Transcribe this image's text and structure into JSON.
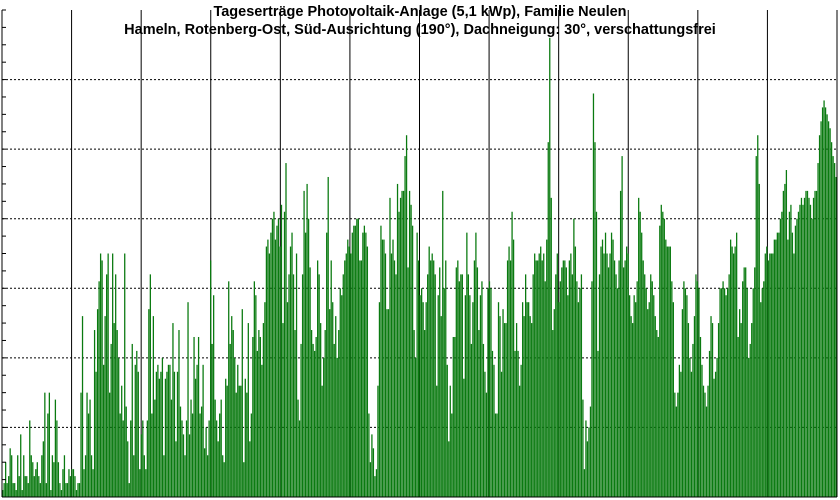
{
  "chart_data": {
    "type": "bar",
    "title": "Tageserträge Photovoltaik-Anlage (5,1 kWp),  Familie Neulen",
    "subtitle": "Hameln, Rotenberg-Ost, Süd-Ausrichtung (190°), Dachneigung: 30°, verschattungsfrei",
    "xlabel": "",
    "ylabel": "",
    "ylim": [
      0,
      7
    ],
    "grid": true,
    "series": [
      {
        "type": "bar",
        "values": [
          0.1,
          0.2,
          0.5,
          0.2,
          0.3,
          0.7,
          0.6,
          0.2,
          0.2,
          0.1,
          0.6,
          0.3,
          0.9,
          0.1,
          0.6,
          0.3,
          0.3,
          0.2,
          1.1,
          0.6,
          0.5,
          0.3,
          0.4,
          0.5,
          0.3,
          0.2,
          0.6,
          0.8,
          1.5,
          0.2,
          1.2,
          1.5,
          0.1,
          0.6,
          0.5,
          1.4,
          1.1,
          0.5,
          0.2,
          0.1,
          0.4,
          0.6,
          0.2,
          0.2,
          0.4,
          0.3,
          0.4,
          0.4,
          0.3,
          0.1,
          0.2,
          0.2,
          1.5,
          2.6,
          0.4,
          0.6,
          1.5,
          1.2,
          1.4,
          0.6,
          0.4,
          2.4,
          1.8,
          2.7,
          3.1,
          3.5,
          3.4,
          1.9,
          2.6,
          3.2,
          3.5,
          1.5,
          2.2,
          3.5,
          2.5,
          3.2,
          2.4,
          2.0,
          1.2,
          1.6,
          1.1,
          3.5,
          1.3,
          0.8,
          0.2,
          1.1,
          2.2,
          0.6,
          1.9,
          2.1,
          1.8,
          0.4,
          0.9,
          1.1,
          0.6,
          0.4,
          1.1,
          2.7,
          3.2,
          1.2,
          2.6,
          1.4,
          1.8,
          1.9,
          1.7,
          1.8,
          2.0,
          0.6,
          1.7,
          1.8,
          1.9,
          1.9,
          1.4,
          2.5,
          1.8,
          0.8,
          1.8,
          2.4,
          1.3,
          1.1,
          0.9,
          0.6,
          1.1,
          2.8,
          0.9,
          1.4,
          1.2,
          2.3,
          1.7,
          1.9,
          2.3,
          1.2,
          1.3,
          1.9,
          0.7,
          1.0,
          0.6,
          1.1,
          3.4,
          2.2,
          2.9,
          1.4,
          1.1,
          0.8,
          1.2,
          1.4,
          0.6,
          0.5,
          1.7,
          1.6,
          3.1,
          2.2,
          2.6,
          2.4,
          2.0,
          1.5,
          1.9,
          1.6,
          1.6,
          2.7,
          0.5,
          1.7,
          1.5,
          2.5,
          0.8,
          1.2,
          2.3,
          3.1,
          2.9,
          2.1,
          2.4,
          2.3,
          1.9,
          2.5,
          2.8,
          3.6,
          3.7,
          3.5,
          3.8,
          4.0,
          4.1,
          3.7,
          3.9,
          4.0,
          3.6,
          4.2,
          2.5,
          4.1,
          4.8,
          2.8,
          3.2,
          3.6,
          3.8,
          3.2,
          2.4,
          3.5,
          1.4,
          1.1,
          2.2,
          3.2,
          4.4,
          3.8,
          4.5,
          4.0,
          3.3,
          2.4,
          2.2,
          2.1,
          2.3,
          3.4,
          3.2,
          2.5,
          1.6,
          2.0,
          2.4,
          3.8,
          4.6,
          2.7,
          3.4,
          2.8,
          2.2,
          2.6,
          2.0,
          2.4,
          3.0,
          2.9,
          3.2,
          3.4,
          3.5,
          3.7,
          3.6,
          3.5,
          3.8,
          3.9,
          3.9,
          4.0,
          4.0,
          3.4,
          3.4,
          3.8,
          3.9,
          3.8,
          3.6,
          1.2,
          0.5,
          0.9,
          0.7,
          0.3,
          0.4,
          1.6,
          2.8,
          3.9,
          3.7,
          3.7,
          3.5,
          2.7,
          2.7,
          4.3,
          3.5,
          3.7,
          3.4,
          3.2,
          4.5,
          4.1,
          4.3,
          4.4,
          4.4,
          4.9,
          5.2,
          3.3,
          4.4,
          4.2,
          3.9,
          2.4,
          2.0,
          3.8,
          3.4,
          2.9,
          3.0,
          2.8,
          2.4,
          2.8,
          3.2,
          3.6,
          3.4,
          3.5,
          3.4,
          3.2,
          1.6,
          2.9,
          3.3,
          2.6,
          4.4,
          3.0,
          3.4,
          1.9,
          0.8,
          1.6,
          1.2,
          2.3,
          2.3,
          3.3,
          3.4,
          3.1,
          3.2,
          3.2,
          1.7,
          2.9,
          3.8,
          3.2,
          2.9,
          2.2,
          2.8,
          3.4,
          3.8,
          3.3,
          2.4,
          2.9,
          3.1,
          2.2,
          1.8,
          1.5,
          3.0,
          3.1,
          3.0,
          2.1,
          1.9,
          1.2,
          1.2,
          2.8,
          2.6,
          1.8,
          2.7,
          2.5,
          2.5,
          3.4,
          3.6,
          3.4,
          4.1,
          3.7,
          2.1,
          2.5,
          2.1,
          1.6,
          1.9,
          2.8,
          2.6,
          3.2,
          2.8,
          2.8,
          2.6,
          2.5,
          3.2,
          3.5,
          3.4,
          3.4,
          3.5,
          3.6,
          3.4,
          3.5,
          3.1,
          3.7,
          5.1,
          6.6,
          4.3,
          2.4,
          2.7,
          3.2,
          3.5,
          2.8,
          3.1,
          3.3,
          3.4,
          3.4,
          3.3,
          2.9,
          3.4,
          3.5,
          3.2,
          4.0,
          3.6,
          3.1,
          2.8,
          3.0,
          3.2,
          1.4,
          0.4,
          1.1,
          0.8,
          1.0,
          1.3,
          3.1,
          5.8,
          5.1,
          4.1,
          2.1,
          3.2,
          3.6,
          3.7,
          3.5,
          3.8,
          3.5,
          3.3,
          3.5,
          3.8,
          3.7,
          3.4,
          3.2,
          3.0,
          3.4,
          4.4,
          4.9,
          3.3,
          3.4,
          3.6,
          3.5,
          2.9,
          2.6,
          2.5,
          2.9,
          2.8,
          3.1,
          4.3,
          4.1,
          3.8,
          3.4,
          3.2,
          3.0,
          2.7,
          2.8,
          3.2,
          3.1,
          2.9,
          2.6,
          2.4,
          2.3,
          3.9,
          4.2,
          4.1,
          4.0,
          3.7,
          3.6,
          3.6,
          3.6,
          3.1,
          2.8,
          1.5,
          1.3,
          1.5,
          1.9,
          1.8,
          2.7,
          3.1,
          3.0,
          2.9,
          2.5,
          2.0,
          1.8,
          2.2,
          2.6,
          3.2,
          3.1,
          3.0,
          2.3,
          1.9,
          1.6,
          1.5,
          1.3,
          1.6,
          2.1,
          2.6,
          2.5,
          1.7,
          1.8,
          2.0,
          2.5,
          3.0,
          3.0,
          3.1,
          3.0,
          2.9,
          3.0,
          3.2,
          3.7,
          3.6,
          3.5,
          3.6,
          3.8,
          2.3,
          2.7,
          2.5,
          3.1,
          3.3,
          3.3,
          3.0,
          2.0,
          2.2,
          2.5,
          3.0,
          3.3,
          4.9,
          5.2,
          4.5,
          2.8,
          3.0,
          3.1,
          3.5,
          3.6,
          3.4,
          3.5,
          3.5,
          3.5,
          3.7,
          3.7,
          3.8,
          3.8,
          4.0,
          4.1,
          4.4,
          4.5,
          4.7,
          3.7,
          4.1,
          4.2,
          3.8,
          3.5,
          3.9,
          4.0,
          4.1,
          4.2,
          4.3,
          4.2,
          4.3,
          4.4,
          4.4,
          4.3,
          4.2,
          4.0,
          4.3,
          4.4,
          4.4,
          4.8,
          5.2,
          5.4,
          5.6,
          5.7,
          5.6,
          5.5,
          5.4,
          5.3,
          5.1,
          4.9,
          4.8,
          4.6
        ]
      }
    ]
  }
}
